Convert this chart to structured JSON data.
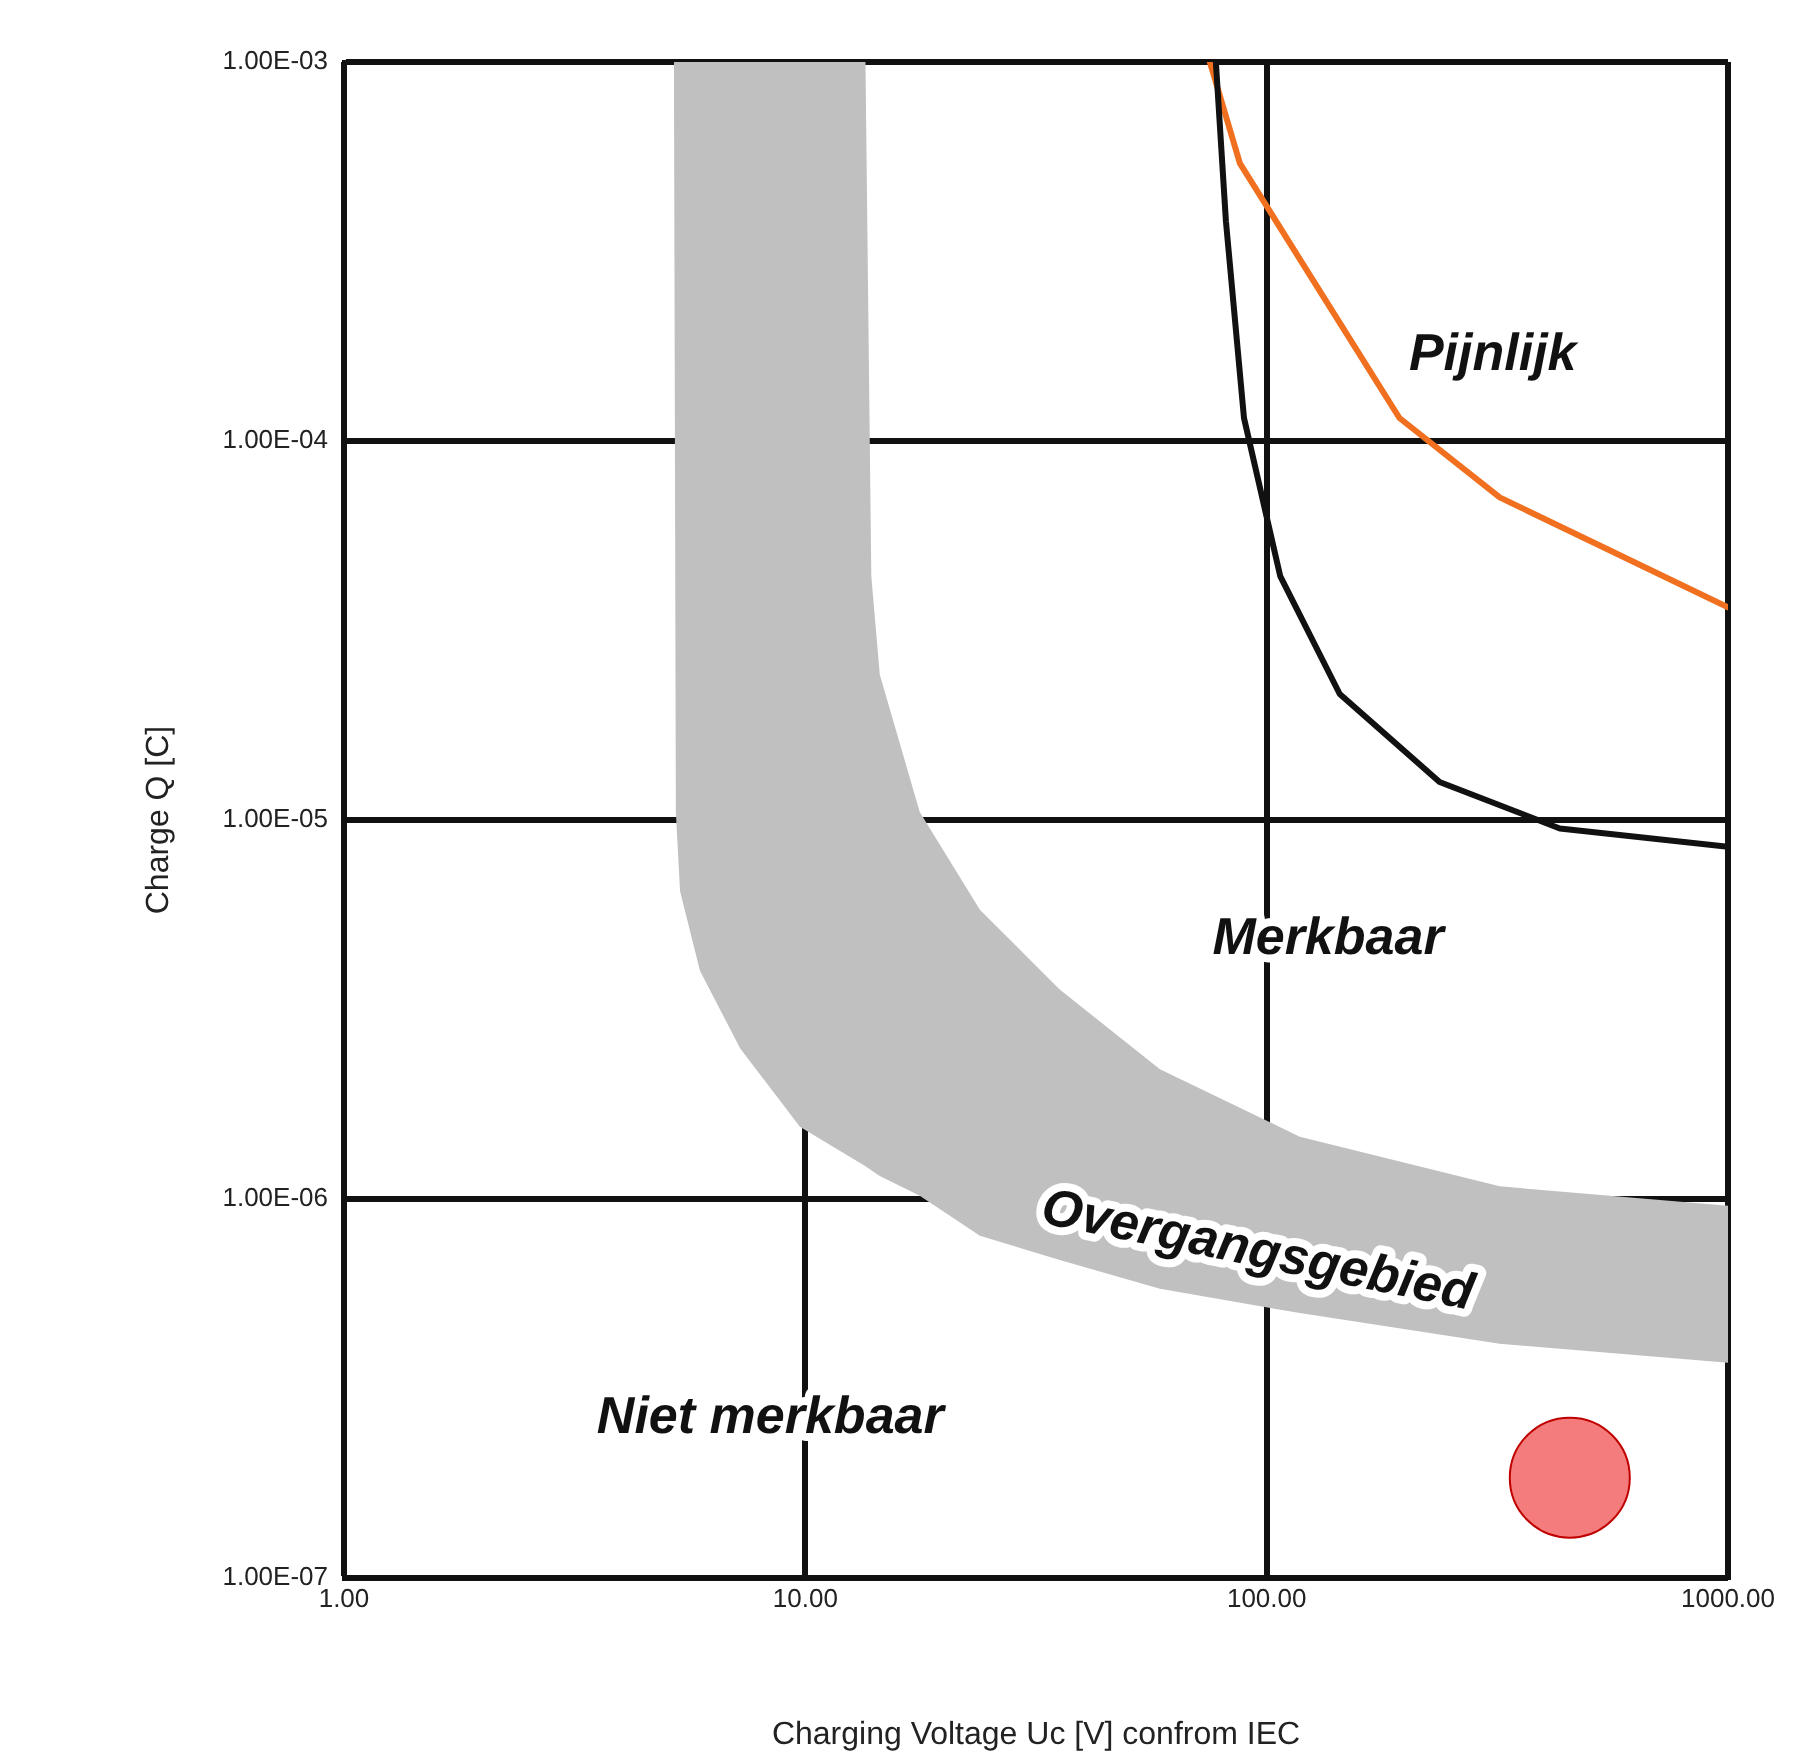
{
  "chart_data": {
    "type": "line",
    "xlabel": "Charging Voltage Uc [V] confrom IEC",
    "ylabel": "Charge Q [C]",
    "log": "xy",
    "grid": true,
    "legend": false,
    "xlim": [
      1,
      1000
    ],
    "xticks": [
      {
        "value": 1,
        "label": "1.00"
      },
      {
        "value": 10,
        "label": "10.00"
      },
      {
        "value": 100,
        "label": "100.00"
      },
      {
        "value": 1000,
        "label": "1000.00"
      }
    ],
    "ylim": [
      1e-07,
      0.001
    ],
    "yticks": [
      {
        "value": 1e-07,
        "label": "1.00E-07"
      },
      {
        "value": 1e-06,
        "label": "1.00E-06"
      },
      {
        "value": 1e-05,
        "label": "1.00E-05"
      },
      {
        "value": 0.0001,
        "label": "1.00E-04"
      },
      {
        "value": 0.001,
        "label": "1.00E-03"
      }
    ],
    "series": [
      {
        "type": "area",
        "color": "#c0c0c0",
        "x": [
          5.19,
          5.24,
          5.35,
          5.91,
          7.22,
          9.73,
          13.5,
          13.9,
          14.5,
          17.7,
          23.9,
          35.6,
          58.7,
          118,
          320,
          1000
        ],
        "values": [
          null,
          null,
          null,
          null,
          null,
          null,
          null,
          null,
          null,
          null,
          null,
          null,
          null,
          null,
          null,
          null
        ],
        "lower": [
          0.001,
          1.05e-05,
          6.5e-06,
          4e-06,
          2.5e-06,
          1.55e-06,
          1.22e-06,
          1.19e-06,
          1.15e-06,
          1.02e-06,
          8e-07,
          6.9e-07,
          5.8e-07,
          5e-07,
          4.15e-07,
          3.7e-07
        ],
        "upper": [
          0.001,
          0.001,
          0.001,
          0.001,
          0.001,
          0.001,
          0.001,
          4.4e-05,
          2.42e-05,
          1.05e-05,
          5.8e-06,
          3.57e-06,
          2.2e-06,
          1.46e-06,
          1.08e-06,
          9.6e-07
        ]
      },
      {
        "color": "#111111",
        "x": [
          77.6,
          81.6,
          89.3,
          107,
          144,
          237,
          432,
          1000
        ],
        "values": [
          0.001,
          0.00038,
          0.000115,
          4.4e-05,
          2.15e-05,
          1.26e-05,
          9.5e-06,
          8.5e-06
        ]
      },
      {
        "type": "line",
        "color": "#f07020",
        "x": [
          75.3,
          87.5,
          130,
          194,
          320,
          527,
          1000
        ],
        "values": [
          0.001,
          0.00054,
          0.00025,
          0.000115,
          7.1e-05,
          5.3e-05,
          3.64e-05
        ]
      },
      {
        "type": "scatter",
        "color": "#f47c7c",
        "marker": "circle",
        "x": [
          454
        ],
        "values": [
          1.84e-07
        ]
      }
    ],
    "annotations": [
      "Pijnlijk",
      "Merkbaar",
      "Overgangsgebied",
      "Niet merkbaar"
    ]
  }
}
